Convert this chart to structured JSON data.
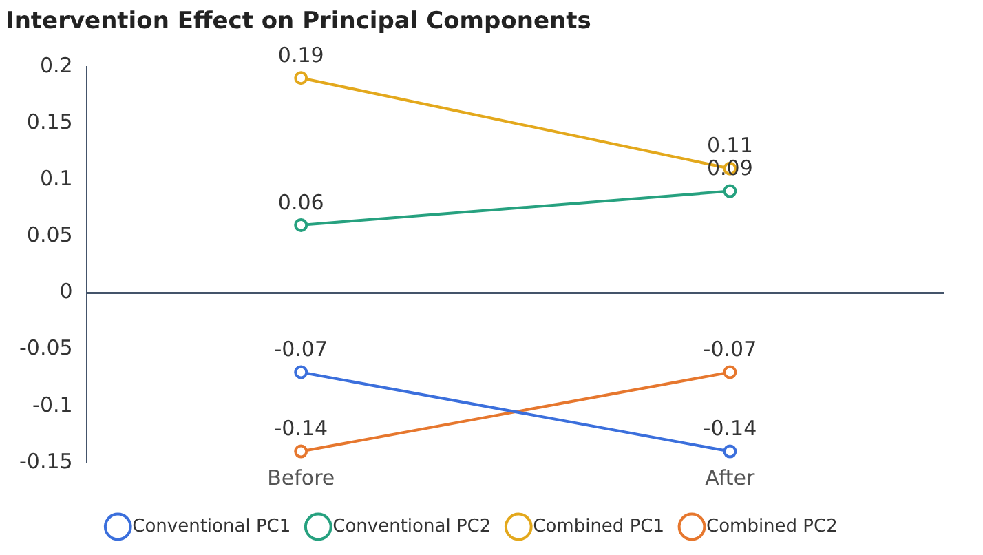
{
  "chart_data": {
    "type": "line",
    "title": "Intervention Effect on Principal Components",
    "categories": [
      "Before",
      "After"
    ],
    "series": [
      {
        "name": "Conventional PC1",
        "color": "#3b6fdc",
        "values": [
          -0.07,
          -0.14
        ]
      },
      {
        "name": "Conventional PC2",
        "color": "#26a17f",
        "values": [
          0.06,
          0.09
        ]
      },
      {
        "name": "Combined PC1",
        "color": "#e3a81c",
        "values": [
          0.19,
          0.11
        ]
      },
      {
        "name": "Combined PC2",
        "color": "#e6772e",
        "values": [
          -0.14,
          -0.07
        ]
      }
    ],
    "ylim": [
      -0.15,
      0.2
    ],
    "yticks": [
      -0.15,
      -0.1,
      -0.05,
      0,
      0.05,
      0.1,
      0.15,
      0.2
    ],
    "legend": "bottom",
    "marker": "circle",
    "line_style": "solid",
    "data_labels": true
  }
}
